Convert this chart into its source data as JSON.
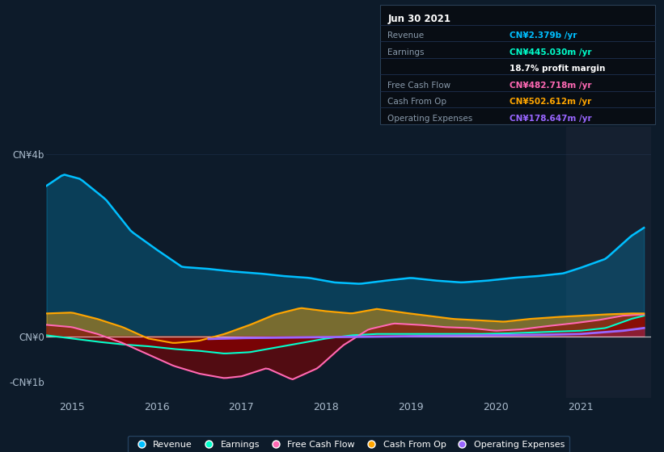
{
  "bg_color": "#0d1b2a",
  "plot_bg_color": "#0d1b2a",
  "revenue_color": "#00bfff",
  "earnings_color": "#00ffcc",
  "fcf_color": "#ff69b4",
  "cashop_color": "#ffa500",
  "opex_color": "#9966ff",
  "zero_line_color": "#ffffff",
  "grid_line_color": "#2a4060",
  "highlight_x_start": 2020.83,
  "highlight_x_end": 2021.83,
  "highlight_color": "#152030",
  "xlim_start": 2014.7,
  "xlim_end": 2021.83,
  "ylim_min": -1350000000.0,
  "ylim_max": 4600000000.0,
  "xticks": [
    2015,
    2016,
    2017,
    2018,
    2019,
    2020,
    2021
  ],
  "info_box": {
    "date": "Jun 30 2021",
    "rows": [
      {
        "label": "Revenue",
        "value": "CN¥2.379b /yr",
        "value_color": "#00bfff",
        "label_color": "#8899aa"
      },
      {
        "label": "Earnings",
        "value": "CN¥445.030m /yr",
        "value_color": "#00ffcc",
        "label_color": "#8899aa"
      },
      {
        "label": "",
        "value": "18.7% profit margin",
        "value_color": "#ffffff",
        "label_color": "#8899aa"
      },
      {
        "label": "Free Cash Flow",
        "value": "CN¥482.718m /yr",
        "value_color": "#ff69b4",
        "label_color": "#8899aa"
      },
      {
        "label": "Cash From Op",
        "value": "CN¥502.612m /yr",
        "value_color": "#ffa500",
        "label_color": "#8899aa"
      },
      {
        "label": "Operating Expenses",
        "value": "CN¥178.647m /yr",
        "value_color": "#9966ff",
        "label_color": "#8899aa"
      }
    ]
  }
}
